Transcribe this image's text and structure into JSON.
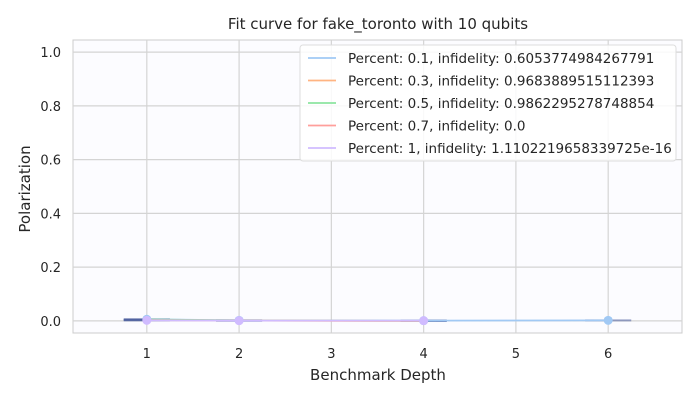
{
  "chart_data": {
    "type": "line",
    "title": "Fit curve for fake_toronto with 10 qubits",
    "xlabel": "Benchmark Depth",
    "ylabel": "Polarization",
    "x_ticks": [
      1,
      2,
      3,
      4,
      5,
      6
    ],
    "x_tick_labels": [
      "1",
      "2",
      "3",
      "4",
      "5",
      "6"
    ],
    "y_ticks": [
      0.0,
      0.2,
      0.4,
      0.6,
      0.8,
      1.0
    ],
    "y_tick_labels": [
      "0.0",
      "0.2",
      "0.4",
      "0.6",
      "0.8",
      "1.0"
    ],
    "xlim": [
      0.2,
      6.8
    ],
    "ylim": [
      -0.045,
      1.045
    ],
    "grid": true,
    "legend_position": "top-right",
    "series": [
      {
        "name": "Percent: 0.1, infidelity: 0.6053774984267791",
        "color": "#a1c9f4",
        "x": [
          1,
          2,
          4,
          6
        ],
        "y": [
          0.006,
          0.002,
          0.001,
          0.002
        ],
        "markers": [
          true,
          true,
          true,
          true
        ],
        "error_bar_width": 0.25
      },
      {
        "name": "Percent: 0.3, infidelity: 0.9683889515112393",
        "color": "#ffb482",
        "x": [
          1,
          2,
          4
        ],
        "y": [
          0.004,
          0.001,
          0.0
        ],
        "markers": [
          false,
          false,
          false
        ],
        "error_bar_width": 0.25
      },
      {
        "name": "Percent: 0.5, infidelity: 0.9862295278748854",
        "color": "#8de5a1",
        "x": [
          1,
          2,
          4
        ],
        "y": [
          0.005,
          0.002,
          0.0
        ],
        "markers": [
          false,
          false,
          false
        ],
        "error_bar_width": 0.25
      },
      {
        "name": "Percent: 0.7, infidelity: 0.0",
        "color": "#ff9f9b",
        "x": [
          1,
          2,
          4
        ],
        "y": [
          0.003,
          0.001,
          0.0
        ],
        "markers": [
          false,
          false,
          false
        ],
        "error_bar_width": 0.25
      },
      {
        "name": "Percent: 1, infidelity: 1.1102219658339725e-16",
        "color": "#d0bbff",
        "x": [
          1,
          2,
          4
        ],
        "y": [
          0.002,
          0.001,
          0.001
        ],
        "markers": [
          true,
          true,
          true
        ],
        "error_bar_width": 0.25
      }
    ],
    "error_bar_color": "#4c5f9e"
  }
}
